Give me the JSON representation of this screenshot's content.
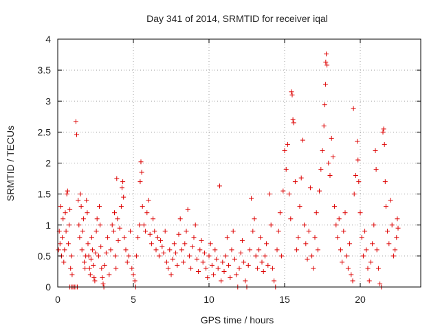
{
  "chart_data": {
    "type": "scatter",
    "title": "Day 341 of 2014, SRMTID for receiver iqal",
    "xlabel": "GPS time / hours",
    "ylabel": "SRMTID / TECUs",
    "xlim": [
      0,
      24
    ],
    "ylim": [
      0,
      4
    ],
    "x_ticks": [
      0,
      5,
      10,
      15,
      20
    ],
    "x_tick_labels": [
      "0",
      "5",
      "10",
      "15",
      "20"
    ],
    "y_ticks": [
      0,
      0.5,
      1,
      1.5,
      2,
      2.5,
      3,
      3.5,
      4
    ],
    "y_tick_labels": [
      "0",
      "0.5",
      "1",
      "1.5",
      "2",
      "2.5",
      "3",
      "3.5",
      "4"
    ],
    "grid": true,
    "marker": "+",
    "color": "#dd0000",
    "series": [
      {
        "name": "SRMTID",
        "points": [
          [
            0.05,
            0.6
          ],
          [
            0.1,
            0.9
          ],
          [
            0.15,
            0.7
          ],
          [
            0.2,
            1.3
          ],
          [
            0.25,
            0.5
          ],
          [
            0.3,
            0.8
          ],
          [
            0.35,
            1.1
          ],
          [
            0.4,
            0.4
          ],
          [
            0.45,
            0.6
          ],
          [
            0.5,
            1.2
          ],
          [
            0.55,
            0.9
          ],
          [
            0.6,
            1.5
          ],
          [
            0.65,
            1.55
          ],
          [
            0.7,
            0.7
          ],
          [
            0.75,
            1.0
          ],
          [
            0.8,
            1.25
          ],
          [
            0.85,
            0.3
          ],
          [
            0.9,
            0.5
          ],
          [
            0.95,
            0.2
          ],
          [
            0.8,
            0.0
          ],
          [
            0.9,
            0.0
          ],
          [
            1.0,
            0.0
          ],
          [
            1.1,
            0.0
          ],
          [
            1.2,
            0.0
          ],
          [
            1.3,
            0.0
          ],
          [
            1.2,
            2.67
          ],
          [
            1.25,
            2.46
          ],
          [
            1.35,
            1.4
          ],
          [
            1.4,
            1.0
          ],
          [
            1.45,
            0.8
          ],
          [
            1.5,
            1.5
          ],
          [
            1.55,
            1.3
          ],
          [
            1.6,
            0.6
          ],
          [
            1.65,
            0.9
          ],
          [
            1.7,
            1.1
          ],
          [
            1.75,
            0.4
          ],
          [
            1.8,
            0.3
          ],
          [
            1.85,
            0.5
          ],
          [
            1.9,
            1.4
          ],
          [
            1.95,
            1.2
          ],
          [
            2.0,
            0.7
          ],
          [
            2.05,
            0.5
          ],
          [
            2.1,
            0.3
          ],
          [
            2.15,
            0.2
          ],
          [
            2.2,
            0.45
          ],
          [
            2.25,
            0.8
          ],
          [
            2.3,
            0.6
          ],
          [
            2.35,
            0.35
          ],
          [
            2.4,
            0.15
          ],
          [
            2.45,
            0.1
          ],
          [
            2.5,
            0.55
          ],
          [
            2.55,
            0.9
          ],
          [
            2.6,
            1.1
          ],
          [
            2.7,
            0.5
          ],
          [
            2.75,
            1.3
          ],
          [
            2.8,
            1.0
          ],
          [
            2.85,
            0.65
          ],
          [
            2.9,
            0.3
          ],
          [
            2.95,
            0.15
          ],
          [
            3.0,
            0.05
          ],
          [
            3.05,
            0.0
          ],
          [
            3.1,
            0.35
          ],
          [
            3.2,
            0.55
          ],
          [
            3.3,
            0.8
          ],
          [
            3.4,
            0.2
          ],
          [
            3.5,
            0.6
          ],
          [
            3.6,
            1.0
          ],
          [
            3.7,
            0.9
          ],
          [
            3.75,
            1.2
          ],
          [
            3.8,
            0.5
          ],
          [
            3.85,
            0.3
          ],
          [
            3.9,
            1.75
          ],
          [
            3.95,
            1.1
          ],
          [
            4.0,
            0.75
          ],
          [
            4.1,
            0.95
          ],
          [
            4.2,
            1.3
          ],
          [
            4.25,
            1.6
          ],
          [
            4.3,
            1.7
          ],
          [
            4.35,
            1.45
          ],
          [
            4.4,
            0.8
          ],
          [
            4.5,
            0.6
          ],
          [
            4.6,
            0.4
          ],
          [
            4.7,
            0.5
          ],
          [
            4.8,
            0.9
          ],
          [
            4.9,
            0.3
          ],
          [
            5.0,
            0.2
          ],
          [
            5.1,
            0.1
          ],
          [
            5.15,
            0.0
          ],
          [
            5.2,
            0.5
          ],
          [
            5.3,
            0.8
          ],
          [
            5.4,
            1.0
          ],
          [
            5.45,
            1.7
          ],
          [
            5.5,
            2.02
          ],
          [
            5.55,
            1.85
          ],
          [
            5.6,
            1.3
          ],
          [
            5.7,
            1.0
          ],
          [
            5.8,
            0.9
          ],
          [
            5.9,
            1.2
          ],
          [
            6.0,
            1.4
          ],
          [
            6.1,
            0.85
          ],
          [
            6.2,
            0.7
          ],
          [
            6.3,
            1.1
          ],
          [
            6.4,
            0.9
          ],
          [
            6.5,
            0.6
          ],
          [
            6.6,
            0.8
          ],
          [
            6.7,
            0.5
          ],
          [
            6.8,
            0.75
          ],
          [
            6.9,
            0.65
          ],
          [
            7.0,
            0.55
          ],
          [
            7.1,
            0.9
          ],
          [
            7.2,
            0.4
          ],
          [
            7.3,
            0.3
          ],
          [
            7.4,
            0.6
          ],
          [
            7.5,
            0.2
          ],
          [
            7.6,
            0.45
          ],
          [
            7.7,
            0.7
          ],
          [
            7.8,
            0.55
          ],
          [
            7.9,
            0.35
          ],
          [
            8.0,
            0.85
          ],
          [
            8.1,
            1.1
          ],
          [
            8.2,
            0.6
          ],
          [
            8.3,
            0.4
          ],
          [
            8.4,
            0.7
          ],
          [
            8.5,
            0.9
          ],
          [
            8.6,
            1.25
          ],
          [
            8.7,
            0.5
          ],
          [
            8.8,
            0.3
          ],
          [
            8.9,
            0.65
          ],
          [
            9.0,
            0.8
          ],
          [
            9.1,
            1.0
          ],
          [
            9.2,
            0.45
          ],
          [
            9.3,
            0.25
          ],
          [
            9.4,
            0.6
          ],
          [
            9.5,
            0.75
          ],
          [
            9.6,
            0.4
          ],
          [
            9.7,
            0.55
          ],
          [
            9.8,
            0.3
          ],
          [
            9.9,
            0.15
          ],
          [
            10.0,
            0.5
          ],
          [
            10.1,
            0.7
          ],
          [
            10.2,
            0.35
          ],
          [
            10.3,
            0.2
          ],
          [
            10.4,
            0.6
          ],
          [
            10.5,
            0.45
          ],
          [
            10.6,
            0.3
          ],
          [
            10.7,
            1.63
          ],
          [
            10.8,
            0.1
          ],
          [
            10.9,
            0.4
          ],
          [
            11.0,
            0.25
          ],
          [
            11.1,
            0.5
          ],
          [
            11.2,
            0.8
          ],
          [
            11.3,
            0.35
          ],
          [
            11.4,
            0.15
          ],
          [
            11.5,
            0.6
          ],
          [
            11.6,
            0.9
          ],
          [
            11.7,
            0.45
          ],
          [
            11.8,
            0.2
          ],
          [
            11.9,
            0.0
          ],
          [
            12.0,
            0.3
          ],
          [
            12.1,
            0.55
          ],
          [
            12.2,
            0.75
          ],
          [
            12.3,
            0.4
          ],
          [
            12.4,
            0.1
          ],
          [
            12.5,
            0.0
          ],
          [
            12.6,
            0.35
          ],
          [
            12.7,
            0.6
          ],
          [
            12.8,
            1.43
          ],
          [
            12.9,
            0.9
          ],
          [
            13.0,
            1.1
          ],
          [
            13.1,
            0.5
          ],
          [
            13.2,
            0.3
          ],
          [
            13.3,
            0.6
          ],
          [
            13.4,
            0.8
          ],
          [
            13.5,
            0.4
          ],
          [
            13.6,
            0.25
          ],
          [
            13.7,
            0.5
          ],
          [
            13.8,
            0.7
          ],
          [
            13.9,
            0.35
          ],
          [
            14.0,
            1.5
          ],
          [
            14.1,
            1.0
          ],
          [
            14.2,
            0.3
          ],
          [
            14.3,
            0.1
          ],
          [
            14.4,
            0.0
          ],
          [
            14.5,
            0.6
          ],
          [
            14.6,
            0.9
          ],
          [
            14.7,
            1.2
          ],
          [
            14.8,
            0.5
          ],
          [
            14.9,
            1.55
          ],
          [
            15.0,
            2.2
          ],
          [
            15.1,
            1.9
          ],
          [
            15.2,
            2.3
          ],
          [
            15.3,
            1.5
          ],
          [
            15.4,
            1.1
          ],
          [
            15.45,
            3.15
          ],
          [
            15.5,
            3.1
          ],
          [
            15.55,
            2.7
          ],
          [
            15.6,
            2.65
          ],
          [
            15.7,
            1.7
          ],
          [
            15.8,
            0.6
          ],
          [
            15.9,
            0.8
          ],
          [
            16.0,
            1.3
          ],
          [
            16.1,
            1.76
          ],
          [
            16.2,
            2.37
          ],
          [
            16.3,
            1.0
          ],
          [
            16.4,
            0.7
          ],
          [
            16.5,
            0.45
          ],
          [
            16.6,
            0.9
          ],
          [
            16.7,
            1.6
          ],
          [
            16.8,
            0.5
          ],
          [
            16.9,
            0.3
          ],
          [
            17.0,
            0.8
          ],
          [
            17.1,
            1.2
          ],
          [
            17.2,
            0.6
          ],
          [
            17.3,
            1.55
          ],
          [
            17.4,
            1.9
          ],
          [
            17.5,
            2.2
          ],
          [
            17.6,
            2.6
          ],
          [
            17.65,
            2.94
          ],
          [
            17.7,
            3.27
          ],
          [
            17.72,
            3.63
          ],
          [
            17.75,
            3.76
          ],
          [
            17.8,
            3.58
          ],
          [
            17.9,
            2.0
          ],
          [
            18.0,
            1.8
          ],
          [
            18.1,
            2.4
          ],
          [
            18.2,
            2.1
          ],
          [
            18.3,
            1.3
          ],
          [
            18.4,
            1.0
          ],
          [
            18.5,
            0.8
          ],
          [
            18.6,
            1.1
          ],
          [
            18.7,
            0.6
          ],
          [
            18.8,
            0.4
          ],
          [
            18.9,
            0.9
          ],
          [
            19.0,
            1.2
          ],
          [
            19.1,
            0.5
          ],
          [
            19.2,
            0.3
          ],
          [
            19.3,
            0.7
          ],
          [
            19.4,
            0.2
          ],
          [
            19.5,
            0.1
          ],
          [
            19.55,
            2.88
          ],
          [
            19.6,
            1.5
          ],
          [
            19.7,
            1.8
          ],
          [
            19.8,
            2.35
          ],
          [
            19.85,
            2.05
          ],
          [
            19.9,
            1.7
          ],
          [
            20.0,
            1.2
          ],
          [
            20.1,
            0.8
          ],
          [
            20.2,
            0.5
          ],
          [
            20.3,
            0.9
          ],
          [
            20.4,
            0.6
          ],
          [
            20.5,
            0.3
          ],
          [
            20.6,
            0.1
          ],
          [
            20.7,
            0.4
          ],
          [
            20.8,
            0.7
          ],
          [
            20.9,
            1.0
          ],
          [
            21.0,
            2.2
          ],
          [
            21.05,
            1.9
          ],
          [
            21.1,
            0.6
          ],
          [
            21.2,
            0.3
          ],
          [
            21.3,
            0.05
          ],
          [
            21.4,
            0.0
          ],
          [
            21.5,
            2.5
          ],
          [
            21.55,
            2.55
          ],
          [
            21.6,
            2.3
          ],
          [
            21.65,
            1.7
          ],
          [
            21.7,
            1.3
          ],
          [
            21.8,
            0.9
          ],
          [
            21.9,
            0.7
          ],
          [
            22.0,
            1.4
          ],
          [
            22.1,
            1.0
          ],
          [
            22.2,
            0.5
          ],
          [
            22.3,
            0.6
          ],
          [
            22.4,
            0.8
          ],
          [
            22.45,
            1.1
          ],
          [
            22.5,
            0.95
          ]
        ]
      }
    ]
  }
}
